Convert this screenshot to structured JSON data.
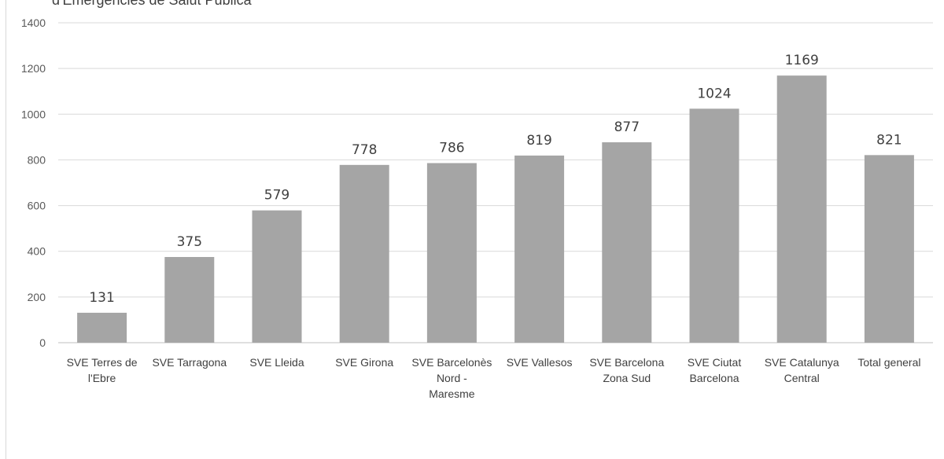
{
  "header": {
    "title_partial": "d'Emergències de Salut Pública"
  },
  "chart_data": {
    "type": "bar",
    "title": "",
    "xlabel": "",
    "ylabel": "",
    "ylim": [
      0,
      1400
    ],
    "yticks": [
      0,
      200,
      400,
      600,
      800,
      1000,
      1200,
      1400
    ],
    "grid": true,
    "categories": [
      [
        "SVE Terres de",
        "l'Ebre"
      ],
      [
        "SVE Tarragona"
      ],
      [
        "SVE Lleida"
      ],
      [
        "SVE Girona"
      ],
      [
        "SVE Barcelonès",
        "Nord -",
        "Maresme"
      ],
      [
        "SVE Vallesos"
      ],
      [
        "SVE  Barcelona",
        "Zona Sud"
      ],
      [
        "SVE Ciutat",
        "Barcelona"
      ],
      [
        "SVE Catalunya",
        "Central"
      ],
      [
        "Total general"
      ]
    ],
    "values": [
      131,
      375,
      579,
      778,
      786,
      819,
      877,
      1024,
      1169,
      821
    ],
    "colors": {
      "bar": "#a5a5a5",
      "grid": "#d9d9d9",
      "axis": "#bfbfbf"
    }
  }
}
